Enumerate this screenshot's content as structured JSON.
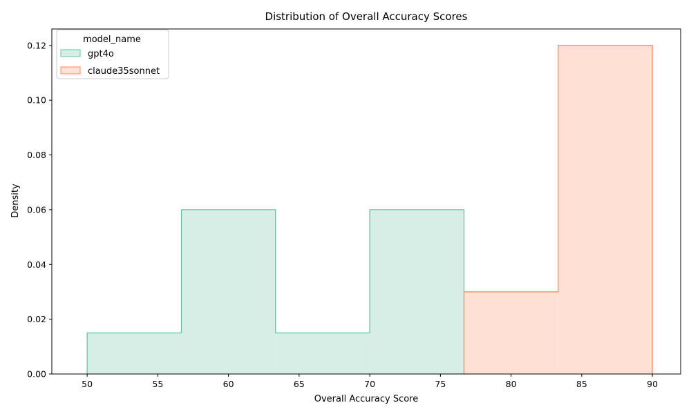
{
  "chart_data": {
    "type": "histogram",
    "title": "Distribution of Overall Accuracy Scores",
    "xlabel": "Overall Accuracy Score",
    "ylabel": "Density",
    "xlim": [
      47.5,
      92.0
    ],
    "ylim": [
      0,
      0.126
    ],
    "xticks": [
      50,
      55,
      60,
      65,
      70,
      75,
      80,
      85,
      90
    ],
    "yticks": [
      0.0,
      0.02,
      0.04,
      0.06,
      0.08,
      0.1,
      0.12
    ],
    "ytick_labels": [
      "0.00",
      "0.02",
      "0.04",
      "0.06",
      "0.08",
      "0.10",
      "0.12"
    ],
    "grid": false,
    "legend": {
      "title": "model_name",
      "placement": "upper-left"
    },
    "series": [
      {
        "name": "gpt4o",
        "color": "#66c2a5",
        "fill": "#d6eee6",
        "bins": [
          {
            "x0": 50.0,
            "x1": 56.67,
            "density": 0.015
          },
          {
            "x0": 56.67,
            "x1": 63.33,
            "density": 0.06
          },
          {
            "x0": 63.33,
            "x1": 70.0,
            "density": 0.015
          },
          {
            "x0": 70.0,
            "x1": 76.67,
            "density": 0.06
          }
        ]
      },
      {
        "name": "claude35sonnet",
        "color": "#fc8d62",
        "fill": "#fee0d4",
        "bins": [
          {
            "x0": 76.67,
            "x1": 83.33,
            "density": 0.03
          },
          {
            "x0": 83.33,
            "x1": 90.0,
            "density": 0.12
          }
        ]
      }
    ]
  }
}
